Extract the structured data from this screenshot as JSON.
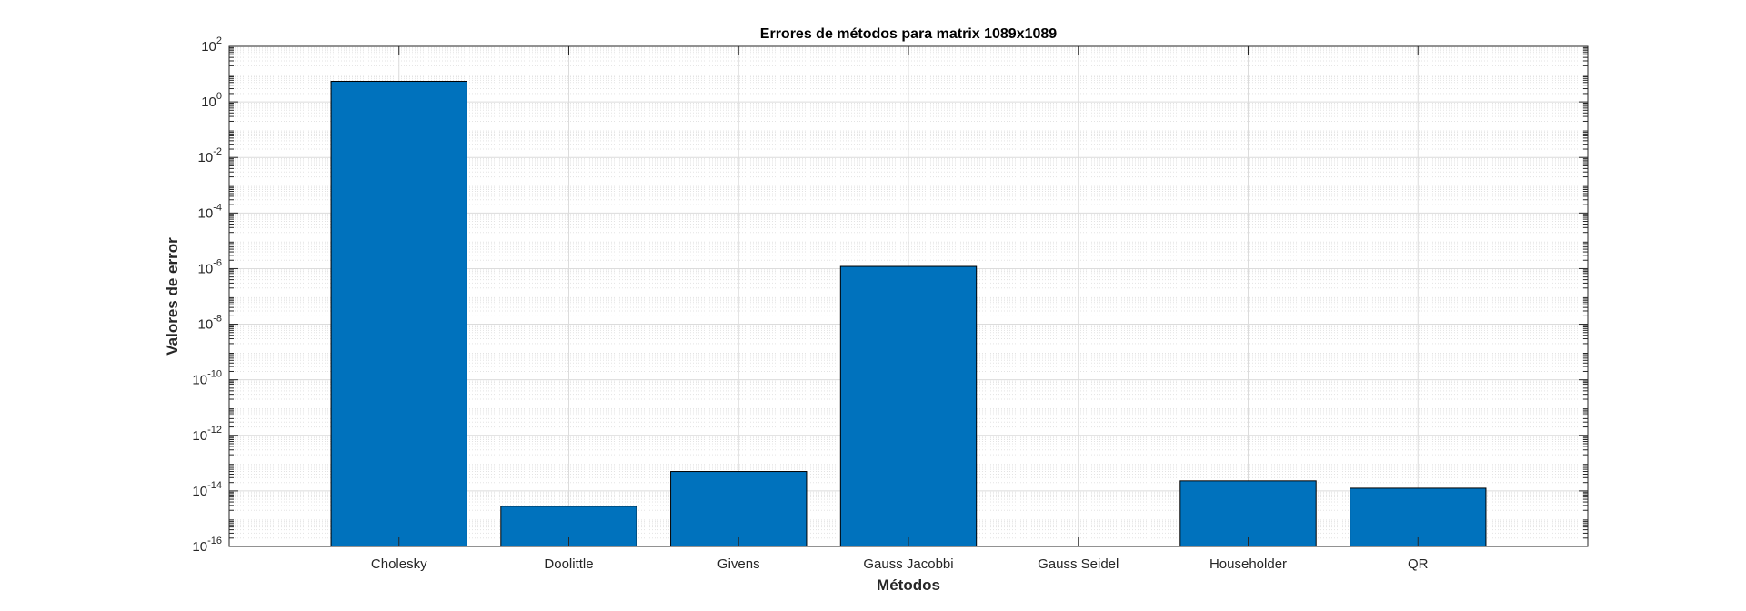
{
  "chart_data": {
    "type": "bar",
    "title": "Errores de métodos para matrix 1089x1089",
    "xlabel": "Métodos",
    "ylabel": "Valores de error",
    "y_scale": "log",
    "ylim": [
      1e-16,
      100
    ],
    "y_ticks": [
      {
        "value": 1e-16,
        "base": "10",
        "exp": "-16"
      },
      {
        "value": 1e-14,
        "base": "10",
        "exp": "-14"
      },
      {
        "value": 1e-12,
        "base": "10",
        "exp": "-12"
      },
      {
        "value": 1e-10,
        "base": "10",
        "exp": "-10"
      },
      {
        "value": 1e-08,
        "base": "10",
        "exp": "-8"
      },
      {
        "value": 1e-06,
        "base": "10",
        "exp": "-6"
      },
      {
        "value": 0.0001,
        "base": "10",
        "exp": "-4"
      },
      {
        "value": 0.01,
        "base": "10",
        "exp": "-2"
      },
      {
        "value": 1,
        "base": "10",
        "exp": "0"
      },
      {
        "value": 100,
        "base": "10",
        "exp": "2"
      }
    ],
    "categories": [
      "Cholesky",
      "Doolittle",
      "Givens",
      "Gauss Jacobbi",
      "Gauss Seidel",
      "Householder",
      "QR"
    ],
    "values": [
      5.5,
      2.8e-15,
      5e-14,
      1.2e-06,
      0,
      2.3e-14,
      1.25e-14
    ],
    "bar_color": "#0072BD",
    "grid": true,
    "minor_grid": true
  }
}
